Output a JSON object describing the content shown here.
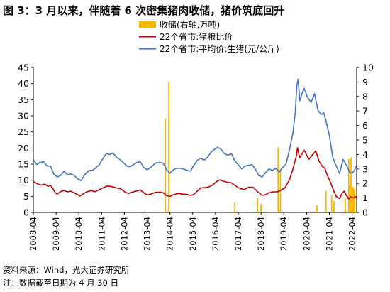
{
  "figure": {
    "title": "图 3：3 月以来，伴随着 6 次密集猪肉收储，猪价筑底回升",
    "source": "资料来源：Wind，光大证券研究所",
    "note": "注：数据截至日期为 4 月 30 日"
  },
  "colors": {
    "storage": "#f5b800",
    "ratio": "#c00000",
    "price": "#4472c4"
  },
  "chart_data": {
    "type": "line",
    "x_ticks": [
      "2008-04",
      "2009-04",
      "2010-04",
      "2011-04",
      "2012-04",
      "2013-04",
      "2014-04",
      "2015-04",
      "2016-04",
      "2017-04",
      "2018-04",
      "2019-04",
      "2020-04",
      "2021-04",
      "2022-04"
    ],
    "x_range": [
      2008.25,
      2022.45
    ],
    "left_axis": {
      "ylim": [
        0,
        45
      ],
      "ticks": [
        "0",
        "5",
        "10",
        "15",
        "20",
        "25",
        "30",
        "35",
        "40",
        "45"
      ]
    },
    "right_axis": {
      "ylim": [
        0,
        10
      ],
      "ticks": [
        "0",
        "1",
        "2",
        "3",
        "4",
        "5",
        "6",
        "7",
        "8",
        "9",
        "10"
      ]
    },
    "legend_position": "top-center",
    "series": [
      {
        "name": "收储(右轴,万吨)",
        "type": "bar",
        "axis": "right",
        "color": "#f5b800",
        "points": [
          [
            2014.05,
            6.5
          ],
          [
            2014.2,
            9.0
          ],
          [
            2017.1,
            0.7
          ],
          [
            2018.1,
            1.0
          ],
          [
            2018.25,
            0.6
          ],
          [
            2019.0,
            4.5
          ],
          [
            2019.1,
            3.0
          ],
          [
            2020.7,
            0.5
          ],
          [
            2021.1,
            1.5
          ],
          [
            2021.35,
            1.2
          ],
          [
            2021.45,
            0.8
          ],
          [
            2021.95,
            1.0
          ],
          [
            2022.1,
            3.7
          ],
          [
            2022.15,
            1.8
          ],
          [
            2022.2,
            3.8
          ],
          [
            2022.26,
            1.8
          ],
          [
            2022.31,
            1.7
          ],
          [
            2022.36,
            1.6
          ]
        ]
      },
      {
        "name": "22个省市:猪粮比价",
        "type": "line",
        "axis": "left",
        "color": "#c00000",
        "points": [
          [
            2008.25,
            9.6
          ],
          [
            2008.45,
            8.8
          ],
          [
            2008.6,
            8.5
          ],
          [
            2008.75,
            8.8
          ],
          [
            2008.9,
            8.1
          ],
          [
            2009.0,
            8.4
          ],
          [
            2009.1,
            7.5
          ],
          [
            2009.2,
            6.2
          ],
          [
            2009.3,
            5.7
          ],
          [
            2009.45,
            6.5
          ],
          [
            2009.6,
            6.8
          ],
          [
            2009.75,
            6.4
          ],
          [
            2009.9,
            6.6
          ],
          [
            2010.0,
            6.2
          ],
          [
            2010.15,
            5.7
          ],
          [
            2010.3,
            5.1
          ],
          [
            2010.45,
            5.8
          ],
          [
            2010.6,
            6.4
          ],
          [
            2010.8,
            6.8
          ],
          [
            2010.95,
            6.4
          ],
          [
            2011.1,
            6.9
          ],
          [
            2011.3,
            7.6
          ],
          [
            2011.5,
            8.2
          ],
          [
            2011.7,
            8.0
          ],
          [
            2011.9,
            7.6
          ],
          [
            2012.1,
            7.3
          ],
          [
            2012.3,
            6.2
          ],
          [
            2012.45,
            5.9
          ],
          [
            2012.6,
            6.3
          ],
          [
            2012.8,
            6.7
          ],
          [
            2012.95,
            7.0
          ],
          [
            2013.1,
            6.1
          ],
          [
            2013.25,
            5.4
          ],
          [
            2013.4,
            5.7
          ],
          [
            2013.6,
            6.2
          ],
          [
            2013.8,
            6.3
          ],
          [
            2013.95,
            6.1
          ],
          [
            2014.1,
            5.2
          ],
          [
            2014.25,
            5.0
          ],
          [
            2014.4,
            5.5
          ],
          [
            2014.6,
            5.9
          ],
          [
            2014.8,
            5.7
          ],
          [
            2015.0,
            5.6
          ],
          [
            2015.15,
            5.3
          ],
          [
            2015.3,
            5.6
          ],
          [
            2015.45,
            6.6
          ],
          [
            2015.6,
            7.6
          ],
          [
            2015.8,
            7.7
          ],
          [
            2015.95,
            7.9
          ],
          [
            2016.1,
            8.4
          ],
          [
            2016.3,
            9.6
          ],
          [
            2016.45,
            10.1
          ],
          [
            2016.6,
            9.7
          ],
          [
            2016.8,
            9.3
          ],
          [
            2016.95,
            9.2
          ],
          [
            2017.1,
            8.4
          ],
          [
            2017.3,
            7.5
          ],
          [
            2017.5,
            7.1
          ],
          [
            2017.7,
            7.8
          ],
          [
            2017.9,
            7.8
          ],
          [
            2018.1,
            6.4
          ],
          [
            2018.3,
            5.3
          ],
          [
            2018.45,
            5.5
          ],
          [
            2018.6,
            6.1
          ],
          [
            2018.8,
            6.4
          ],
          [
            2018.95,
            6.4
          ],
          [
            2019.1,
            6.8
          ],
          [
            2019.3,
            7.6
          ],
          [
            2019.5,
            10.2
          ],
          [
            2019.65,
            13.5
          ],
          [
            2019.8,
            17.5
          ],
          [
            2019.85,
            20.1
          ],
          [
            2019.95,
            17.0
          ],
          [
            2020.05,
            18.2
          ],
          [
            2020.15,
            19.3
          ],
          [
            2020.35,
            16.5
          ],
          [
            2020.5,
            17.8
          ],
          [
            2020.65,
            19.1
          ],
          [
            2020.8,
            15.9
          ],
          [
            2020.95,
            14.2
          ],
          [
            2021.05,
            13.8
          ],
          [
            2021.15,
            11.7
          ],
          [
            2021.3,
            9.3
          ],
          [
            2021.45,
            6.6
          ],
          [
            2021.55,
            5.0
          ],
          [
            2021.7,
            4.3
          ],
          [
            2021.8,
            5.8
          ],
          [
            2021.9,
            6.6
          ],
          [
            2022.0,
            5.3
          ],
          [
            2022.1,
            4.2
          ],
          [
            2022.2,
            4.8
          ],
          [
            2022.3,
            4.5
          ],
          [
            2022.38,
            4.9
          ],
          [
            2022.45,
            4.8
          ]
        ]
      },
      {
        "name": "22个省市:平均价:生猪(元/公斤)",
        "type": "line",
        "axis": "right",
        "color": "#4472c4",
        "points": [
          [
            2008.25,
            3.65
          ],
          [
            2008.4,
            3.3
          ],
          [
            2008.55,
            3.45
          ],
          [
            2008.7,
            3.5
          ],
          [
            2008.85,
            3.2
          ],
          [
            2009.0,
            3.2
          ],
          [
            2009.15,
            2.65
          ],
          [
            2009.3,
            2.45
          ],
          [
            2009.45,
            2.55
          ],
          [
            2009.6,
            2.85
          ],
          [
            2009.75,
            2.6
          ],
          [
            2009.9,
            2.65
          ],
          [
            2010.05,
            2.55
          ],
          [
            2010.2,
            2.3
          ],
          [
            2010.35,
            2.2
          ],
          [
            2010.5,
            2.6
          ],
          [
            2010.7,
            2.9
          ],
          [
            2010.85,
            2.9
          ],
          [
            2011.0,
            3.1
          ],
          [
            2011.15,
            3.3
          ],
          [
            2011.3,
            3.7
          ],
          [
            2011.45,
            4.05
          ],
          [
            2011.6,
            4.0
          ],
          [
            2011.75,
            4.1
          ],
          [
            2011.9,
            3.8
          ],
          [
            2012.05,
            3.65
          ],
          [
            2012.2,
            3.45
          ],
          [
            2012.35,
            3.2
          ],
          [
            2012.5,
            3.15
          ],
          [
            2012.65,
            3.3
          ],
          [
            2012.8,
            3.45
          ],
          [
            2012.95,
            3.5
          ],
          [
            2013.1,
            3.1
          ],
          [
            2013.25,
            2.95
          ],
          [
            2013.45,
            3.15
          ],
          [
            2013.6,
            3.4
          ],
          [
            2013.8,
            3.45
          ],
          [
            2013.95,
            3.4
          ],
          [
            2014.1,
            2.95
          ],
          [
            2014.25,
            2.7
          ],
          [
            2014.4,
            2.95
          ],
          [
            2014.55,
            3.05
          ],
          [
            2014.7,
            3.05
          ],
          [
            2014.85,
            3.0
          ],
          [
            2015.0,
            2.9
          ],
          [
            2015.15,
            2.85
          ],
          [
            2015.3,
            3.25
          ],
          [
            2015.45,
            3.6
          ],
          [
            2015.6,
            3.75
          ],
          [
            2015.75,
            3.6
          ],
          [
            2015.9,
            3.8
          ],
          [
            2016.05,
            4.15
          ],
          [
            2016.2,
            4.35
          ],
          [
            2016.35,
            4.5
          ],
          [
            2016.5,
            4.35
          ],
          [
            2016.65,
            4.05
          ],
          [
            2016.8,
            3.95
          ],
          [
            2016.95,
            4.05
          ],
          [
            2017.1,
            3.55
          ],
          [
            2017.25,
            3.3
          ],
          [
            2017.4,
            3.0
          ],
          [
            2017.55,
            3.2
          ],
          [
            2017.7,
            3.25
          ],
          [
            2017.85,
            3.3
          ],
          [
            2018.0,
            3.0
          ],
          [
            2018.15,
            2.55
          ],
          [
            2018.3,
            2.45
          ],
          [
            2018.45,
            2.75
          ],
          [
            2018.6,
            3.0
          ],
          [
            2018.75,
            2.9
          ],
          [
            2018.9,
            3.05
          ],
          [
            2019.05,
            2.8
          ],
          [
            2019.2,
            3.1
          ],
          [
            2019.35,
            3.35
          ],
          [
            2019.5,
            4.35
          ],
          [
            2019.65,
            5.5
          ],
          [
            2019.75,
            6.85
          ],
          [
            2019.82,
            8.7
          ],
          [
            2019.88,
            9.2
          ],
          [
            2019.95,
            7.7
          ],
          [
            2020.05,
            8.2
          ],
          [
            2020.15,
            8.55
          ],
          [
            2020.3,
            7.9
          ],
          [
            2020.45,
            7.6
          ],
          [
            2020.6,
            8.2
          ],
          [
            2020.75,
            7.05
          ],
          [
            2020.9,
            6.75
          ],
          [
            2021.0,
            6.9
          ],
          [
            2021.1,
            6.35
          ],
          [
            2021.25,
            5.3
          ],
          [
            2021.4,
            3.8
          ],
          [
            2021.5,
            3.4
          ],
          [
            2021.6,
            3.05
          ],
          [
            2021.7,
            2.7
          ],
          [
            2021.85,
            3.65
          ],
          [
            2021.95,
            3.4
          ],
          [
            2022.05,
            3.1
          ],
          [
            2022.15,
            2.75
          ],
          [
            2022.25,
            2.7
          ],
          [
            2022.35,
            2.9
          ],
          [
            2022.45,
            3.25
          ]
        ]
      }
    ]
  }
}
